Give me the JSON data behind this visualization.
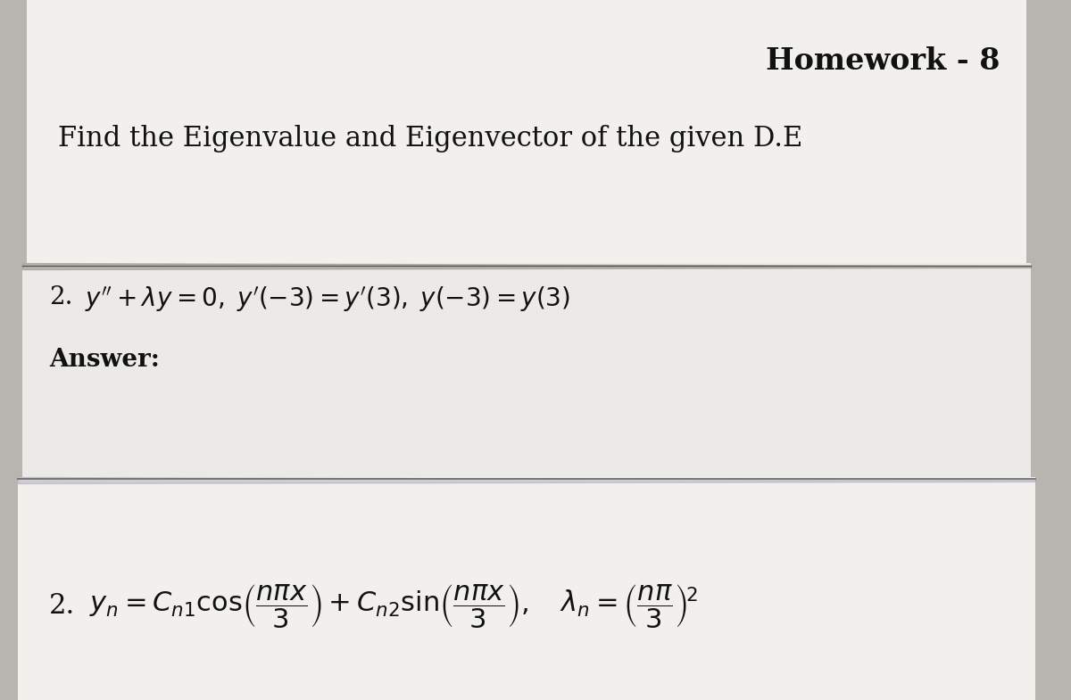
{
  "bg_color": "#b8b5b0",
  "title": "Homework - 8",
  "title_fontsize": 24,
  "subtitle": "Find the Eigenvalue and Eigenvector of the given D.E",
  "subtitle_fontsize": 22,
  "problem_number": "2.",
  "problem_text": "$y'' + \\lambda y = 0,\\; y'(-3) = y'(3),\\; y(-3) = y(3)$",
  "problem_fontsize": 20,
  "answer_label": "Answer:",
  "answer_label_fontsize": 20,
  "answer_number": "2.",
  "answer_formula": "$y_n = C_{n1}\\cos\\!\\left(\\dfrac{n\\pi x}{3}\\right) + C_{n2}\\sin\\!\\left(\\dfrac{n\\pi x}{3}\\right),\\quad \\lambda_n = \\left(\\dfrac{n\\pi}{3}\\right)^{\\!2}$",
  "answer_fontsize": 22,
  "text_color": "#111111",
  "paper_top_color": "#e8e6e2",
  "paper_mid_color": "#dedad5",
  "paper_bot_color": "#d5d1cb",
  "sheet1_color": "#f2f0ec",
  "sheet2_color": "#eceae6",
  "sheet3_color": "#e5e2de"
}
